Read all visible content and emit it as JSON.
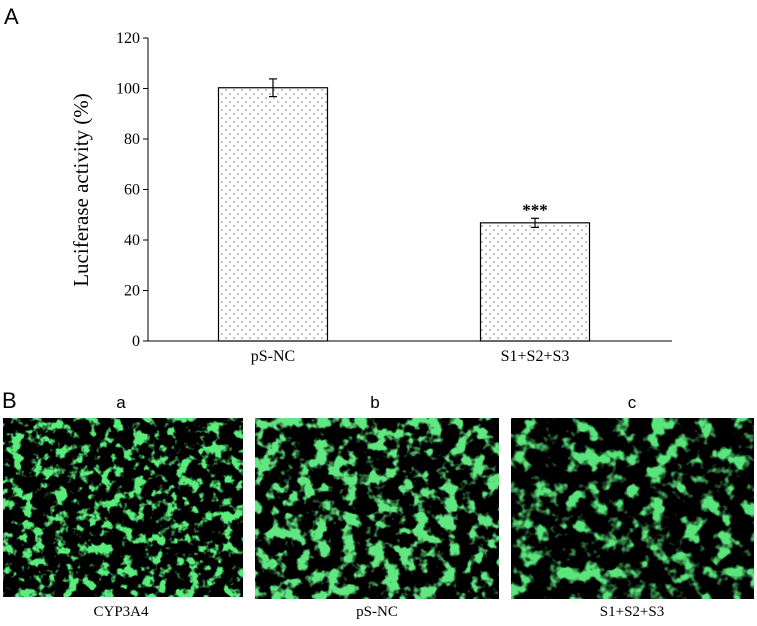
{
  "panels": {
    "a_letter": "A",
    "b_letter": "B"
  },
  "chart_data": {
    "type": "bar",
    "categories": [
      "pS-NC",
      "S1+S2+S3"
    ],
    "values": [
      100.3,
      46.8
    ],
    "errors": [
      3.5,
      1.8
    ],
    "significance": [
      "",
      "***"
    ],
    "title": "",
    "xlabel": "",
    "ylabel": "Luciferase activity (%)",
    "ylim": [
      0,
      120
    ],
    "yticks": [
      0,
      20,
      40,
      60,
      80,
      100,
      120
    ],
    "grid": false,
    "legend": "none",
    "bar_fill": "dotted-gray"
  },
  "micrographs": [
    {
      "letter": "a",
      "caption": "CYP3A4",
      "stain_color": "#22c040"
    },
    {
      "letter": "b",
      "caption": "pS-NC",
      "stain_color": "#22c040"
    },
    {
      "letter": "c",
      "caption": "S1+S2+S3",
      "stain_color": "#22c040"
    }
  ]
}
